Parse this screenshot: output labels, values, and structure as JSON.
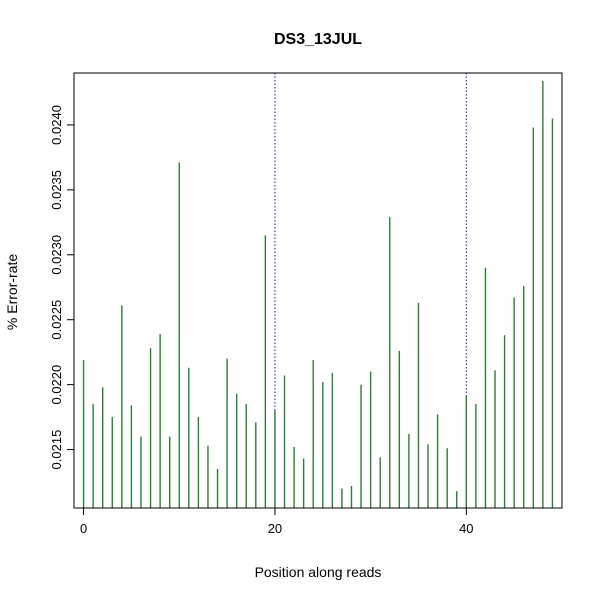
{
  "chart_data": {
    "type": "bar",
    "title": "DS3_13JUL",
    "xlabel": "Position along reads",
    "ylabel": "% Error-rate",
    "xlim": [
      -1,
      50
    ],
    "ylim": [
      0.02105,
      0.0244
    ],
    "xticks": [
      0,
      20,
      40
    ],
    "yticks": [
      0.0215,
      0.022,
      0.0225,
      0.023,
      0.0235,
      0.024
    ],
    "ytick_labels": [
      "0.0215",
      "0.0220",
      "0.0225",
      "0.0230",
      "0.0235",
      "0.0240"
    ],
    "vlines": [
      20,
      40
    ],
    "bar_color": "#2e7d32",
    "vline_color": "#1a1a8c",
    "x": [
      0,
      1,
      2,
      3,
      4,
      5,
      6,
      7,
      8,
      9,
      10,
      11,
      12,
      13,
      14,
      15,
      16,
      17,
      18,
      19,
      20,
      21,
      22,
      23,
      24,
      25,
      26,
      27,
      28,
      29,
      30,
      31,
      32,
      33,
      34,
      35,
      36,
      37,
      38,
      39,
      40,
      41,
      42,
      43,
      44,
      45,
      46,
      47,
      48,
      49
    ],
    "values": [
      0.02219,
      0.02185,
      0.02198,
      0.02175,
      0.02261,
      0.02184,
      0.0216,
      0.02228,
      0.02239,
      0.0216,
      0.02371,
      0.02213,
      0.02175,
      0.02153,
      0.02135,
      0.0222,
      0.02193,
      0.02185,
      0.02171,
      0.02315,
      0.0218,
      0.02207,
      0.02152,
      0.02143,
      0.02219,
      0.02202,
      0.02209,
      0.0212,
      0.02122,
      0.022,
      0.0221,
      0.02144,
      0.02329,
      0.02226,
      0.02162,
      0.02263,
      0.02154,
      0.02177,
      0.02151,
      0.02118,
      0.02191,
      0.02185,
      0.0229,
      0.02211,
      0.02238,
      0.02267,
      0.02276,
      0.02398,
      0.02434,
      0.02405
    ]
  }
}
